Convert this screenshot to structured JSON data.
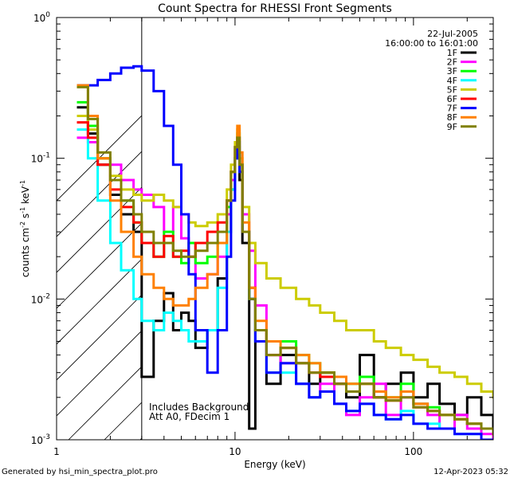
{
  "chart_data": {
    "type": "line",
    "title": "Count Spectra for RHESSI Front Segments",
    "xlabel": "Energy (keV)",
    "ylabel_main": "counts cm",
    "ylabel_sup1": "-2",
    "ylabel_mid": " s",
    "ylabel_sup2": "-1",
    "ylabel_mid2": " keV",
    "ylabel_sup3": "-1",
    "xscale": "log",
    "yscale": "log",
    "xlim": [
      1,
      280
    ],
    "ylim": [
      0.001,
      1
    ],
    "xticks": [
      {
        "value": 1,
        "label": "1"
      },
      {
        "value": 10,
        "label": "10"
      },
      {
        "value": 100,
        "label": "100"
      }
    ],
    "yticks": [
      {
        "value": 0.001,
        "base": "10",
        "exp": "-3"
      },
      {
        "value": 0.01,
        "base": "10",
        "exp": "-2"
      },
      {
        "value": 0.1,
        "base": "10",
        "exp": "-1"
      },
      {
        "value": 1,
        "base": "10",
        "exp": "0"
      }
    ],
    "date": "22-Jul-2005",
    "time_range": "16:00:00 to 16:01:00",
    "annotation_lines": [
      "Includes Background",
      "Att A0, FDecim 1"
    ],
    "attenuator_edge_kev": 3,
    "footer_left": "Generated by hsi_min_spectra_plot.pro",
    "footer_right": "12-Apr-2023 05:32",
    "series": [
      {
        "name": "1F",
        "color": "#000000",
        "x": [
          1.3,
          1.5,
          1.7,
          2.0,
          2.3,
          2.7,
          3.0,
          3.5,
          4.0,
          4.5,
          5.0,
          5.5,
          6.0,
          7.0,
          8.0,
          9.0,
          9.5,
          10.0,
          10.3,
          10.6,
          11.0,
          12.0,
          13.0,
          15.0,
          18.0,
          22.0,
          26.0,
          30.0,
          36.0,
          42.0,
          50.0,
          60.0,
          70.0,
          85.0,
          100.0,
          120.0,
          140.0,
          170.0,
          200.0,
          240.0,
          280.0
        ],
        "y": [
          0.23,
          0.15,
          0.09,
          0.055,
          0.04,
          0.03,
          0.0028,
          0.007,
          0.011,
          0.006,
          0.008,
          0.007,
          0.0045,
          0.006,
          0.014,
          0.03,
          0.06,
          0.1,
          0.12,
          0.07,
          0.025,
          0.0012,
          0.006,
          0.0025,
          0.004,
          0.0035,
          0.0025,
          0.003,
          0.0025,
          0.002,
          0.004,
          0.002,
          0.0025,
          0.003,
          0.002,
          0.0025,
          0.0018,
          0.0015,
          0.002,
          0.0015,
          0.0011
        ]
      },
      {
        "name": "2F",
        "color": "#ff00ff",
        "x": [
          1.3,
          1.5,
          1.7,
          2.0,
          2.3,
          2.7,
          3.0,
          3.5,
          4.0,
          4.5,
          5.0,
          5.5,
          6.0,
          7.0,
          8.0,
          9.0,
          9.5,
          10.0,
          10.3,
          10.6,
          11.0,
          12.0,
          13.0,
          15.0,
          18.0,
          22.0,
          26.0,
          30.0,
          36.0,
          42.0,
          50.0,
          60.0,
          70.0,
          85.0,
          100.0,
          120.0,
          140.0,
          170.0,
          200.0,
          240.0,
          280.0
        ],
        "y": [
          0.14,
          0.13,
          0.1,
          0.09,
          0.07,
          0.06,
          0.055,
          0.045,
          0.03,
          0.045,
          0.027,
          0.02,
          0.014,
          0.015,
          0.02,
          0.04,
          0.07,
          0.11,
          0.14,
          0.09,
          0.04,
          0.022,
          0.009,
          0.004,
          0.0035,
          0.0025,
          0.002,
          0.0025,
          0.0018,
          0.0015,
          0.002,
          0.0025,
          0.0015,
          0.002,
          0.0018,
          0.0015,
          0.0012,
          0.0015,
          0.0012,
          0.0011,
          0.001
        ]
      },
      {
        "name": "3F",
        "color": "#00ff00",
        "x": [
          1.3,
          1.5,
          1.7,
          2.0,
          2.3,
          2.7,
          3.0,
          3.5,
          4.0,
          4.5,
          5.0,
          5.5,
          6.0,
          7.0,
          8.0,
          9.0,
          9.5,
          10.0,
          10.3,
          10.6,
          11.0,
          12.0,
          13.0,
          15.0,
          18.0,
          22.0,
          26.0,
          30.0,
          36.0,
          42.0,
          50.0,
          60.0,
          70.0,
          85.0,
          100.0,
          120.0,
          140.0,
          170.0,
          200.0,
          240.0,
          280.0
        ],
        "y": [
          0.25,
          0.17,
          0.1,
          0.07,
          0.05,
          0.035,
          0.025,
          0.02,
          0.03,
          0.02,
          0.018,
          0.025,
          0.018,
          0.02,
          0.025,
          0.045,
          0.08,
          0.12,
          0.15,
          0.09,
          0.03,
          0.01,
          0.006,
          0.005,
          0.005,
          0.004,
          0.0035,
          0.003,
          0.0028,
          0.0025,
          0.0028,
          0.0022,
          0.002,
          0.0025,
          0.0018,
          0.0017,
          0.0015,
          0.0014,
          0.0013,
          0.0012,
          0.0011
        ]
      },
      {
        "name": "4F",
        "color": "#00ffff",
        "x": [
          1.3,
          1.5,
          1.7,
          2.0,
          2.3,
          2.7,
          3.0,
          3.5,
          4.0,
          4.5,
          5.0,
          5.5,
          6.0,
          7.0,
          8.0,
          9.0,
          9.5,
          10.0,
          10.3,
          10.6,
          11.0,
          12.0,
          13.0,
          15.0,
          18.0,
          22.0,
          26.0,
          30.0,
          36.0,
          42.0,
          50.0,
          60.0,
          70.0,
          85.0,
          100.0,
          120.0,
          140.0,
          170.0,
          200.0,
          240.0,
          280.0
        ],
        "y": [
          0.16,
          0.1,
          0.05,
          0.025,
          0.016,
          0.01,
          0.007,
          0.006,
          0.008,
          0.007,
          0.006,
          0.005,
          0.005,
          0.006,
          0.012,
          0.03,
          0.06,
          0.1,
          0.13,
          0.08,
          0.03,
          0.01,
          0.005,
          0.003,
          0.003,
          0.0025,
          0.002,
          0.0022,
          0.0018,
          0.0016,
          0.0018,
          0.0015,
          0.0014,
          0.0016,
          0.0013,
          0.0013,
          0.0012,
          0.0011,
          0.0011,
          0.001,
          0.001
        ]
      },
      {
        "name": "5F",
        "color": "#cccc00",
        "x": [
          1.3,
          1.5,
          1.7,
          2.0,
          2.3,
          2.7,
          3.0,
          3.5,
          4.0,
          4.5,
          5.0,
          5.5,
          6.0,
          7.0,
          8.0,
          9.0,
          9.5,
          10.0,
          10.3,
          10.6,
          11.0,
          12.0,
          13.0,
          15.0,
          18.0,
          22.0,
          26.0,
          30.0,
          36.0,
          42.0,
          50.0,
          60.0,
          70.0,
          85.0,
          100.0,
          120.0,
          140.0,
          170.0,
          200.0,
          240.0,
          280.0
        ],
        "y": [
          0.2,
          0.16,
          0.1,
          0.075,
          0.06,
          0.055,
          0.05,
          0.055,
          0.05,
          0.045,
          0.04,
          0.035,
          0.033,
          0.035,
          0.04,
          0.06,
          0.09,
          0.13,
          0.16,
          0.1,
          0.045,
          0.025,
          0.018,
          0.014,
          0.012,
          0.01,
          0.009,
          0.008,
          0.007,
          0.006,
          0.006,
          0.005,
          0.0045,
          0.004,
          0.0037,
          0.0033,
          0.003,
          0.0028,
          0.0025,
          0.0022,
          0.002
        ]
      },
      {
        "name": "6F",
        "color": "#ff0000",
        "x": [
          1.3,
          1.5,
          1.7,
          2.0,
          2.3,
          2.7,
          3.0,
          3.5,
          4.0,
          4.5,
          5.0,
          5.5,
          6.0,
          7.0,
          8.0,
          9.0,
          9.5,
          10.0,
          10.3,
          10.6,
          11.0,
          12.0,
          13.0,
          15.0,
          18.0,
          22.0,
          26.0,
          30.0,
          36.0,
          42.0,
          50.0,
          60.0,
          70.0,
          85.0,
          100.0,
          120.0,
          140.0,
          170.0,
          200.0,
          240.0,
          280.0
        ],
        "y": [
          0.18,
          0.14,
          0.09,
          0.06,
          0.045,
          0.035,
          0.025,
          0.02,
          0.028,
          0.02,
          0.022,
          0.02,
          0.025,
          0.03,
          0.035,
          0.05,
          0.08,
          0.12,
          0.14,
          0.09,
          0.03,
          0.012,
          0.006,
          0.004,
          0.0045,
          0.0035,
          0.003,
          0.0028,
          0.0025,
          0.0022,
          0.0025,
          0.002,
          0.0019,
          0.0022,
          0.0017,
          0.0016,
          0.0015,
          0.0014,
          0.0013,
          0.0012,
          0.0011
        ]
      },
      {
        "name": "7F",
        "color": "#0000ff",
        "x": [
          1.3,
          1.5,
          1.7,
          2.0,
          2.3,
          2.7,
          3.0,
          3.5,
          4.0,
          4.5,
          5.0,
          5.5,
          6.0,
          7.0,
          8.0,
          9.0,
          9.5,
          10.0,
          10.3,
          10.6,
          11.0,
          12.0,
          13.0,
          15.0,
          18.0,
          22.0,
          26.0,
          30.0,
          36.0,
          42.0,
          50.0,
          60.0,
          70.0,
          85.0,
          100.0,
          120.0,
          140.0,
          170.0,
          200.0,
          240.0,
          280.0
        ],
        "y": [
          0.33,
          0.33,
          0.36,
          0.4,
          0.44,
          0.45,
          0.42,
          0.3,
          0.17,
          0.09,
          0.04,
          0.015,
          0.006,
          0.003,
          0.006,
          0.02,
          0.05,
          0.1,
          0.13,
          0.08,
          0.03,
          0.01,
          0.005,
          0.003,
          0.0035,
          0.0025,
          0.002,
          0.0022,
          0.0018,
          0.0016,
          0.0018,
          0.0015,
          0.0014,
          0.0015,
          0.0013,
          0.0012,
          0.0012,
          0.0011,
          0.0011,
          0.001,
          0.001
        ]
      },
      {
        "name": "8F",
        "color": "#ff8000",
        "x": [
          1.3,
          1.5,
          1.7,
          2.0,
          2.3,
          2.7,
          3.0,
          3.5,
          4.0,
          4.5,
          5.0,
          5.5,
          6.0,
          7.0,
          8.0,
          9.0,
          9.5,
          10.0,
          10.3,
          10.6,
          11.0,
          12.0,
          13.0,
          15.0,
          18.0,
          22.0,
          26.0,
          30.0,
          36.0,
          42.0,
          50.0,
          60.0,
          70.0,
          85.0,
          100.0,
          120.0,
          140.0,
          170.0,
          200.0,
          240.0,
          280.0
        ],
        "y": [
          0.33,
          0.2,
          0.1,
          0.05,
          0.03,
          0.02,
          0.015,
          0.012,
          0.01,
          0.009,
          0.009,
          0.01,
          0.012,
          0.015,
          0.025,
          0.05,
          0.08,
          0.12,
          0.17,
          0.11,
          0.035,
          0.012,
          0.007,
          0.005,
          0.0045,
          0.004,
          0.0035,
          0.003,
          0.0028,
          0.0025,
          0.0025,
          0.0022,
          0.002,
          0.0022,
          0.0018,
          0.0016,
          0.0015,
          0.0014,
          0.0013,
          0.0012,
          0.0011
        ]
      },
      {
        "name": "9F",
        "color": "#808000",
        "x": [
          1.3,
          1.5,
          1.7,
          2.0,
          2.3,
          2.7,
          3.0,
          3.5,
          4.0,
          4.5,
          5.0,
          5.5,
          6.0,
          7.0,
          8.0,
          9.0,
          9.5,
          10.0,
          10.3,
          10.6,
          11.0,
          12.0,
          13.0,
          15.0,
          18.0,
          22.0,
          26.0,
          30.0,
          36.0,
          42.0,
          50.0,
          60.0,
          70.0,
          85.0,
          100.0,
          120.0,
          140.0,
          170.0,
          200.0,
          240.0,
          280.0
        ],
        "y": [
          0.32,
          0.19,
          0.11,
          0.07,
          0.05,
          0.04,
          0.03,
          0.025,
          0.025,
          0.022,
          0.02,
          0.02,
          0.022,
          0.025,
          0.03,
          0.05,
          0.08,
          0.12,
          0.14,
          0.09,
          0.03,
          0.01,
          0.006,
          0.004,
          0.0045,
          0.0035,
          0.003,
          0.003,
          0.0025,
          0.0022,
          0.0025,
          0.002,
          0.0019,
          0.002,
          0.0017,
          0.0016,
          0.0015,
          0.0014,
          0.0013,
          0.0012,
          0.0011
        ]
      }
    ]
  }
}
